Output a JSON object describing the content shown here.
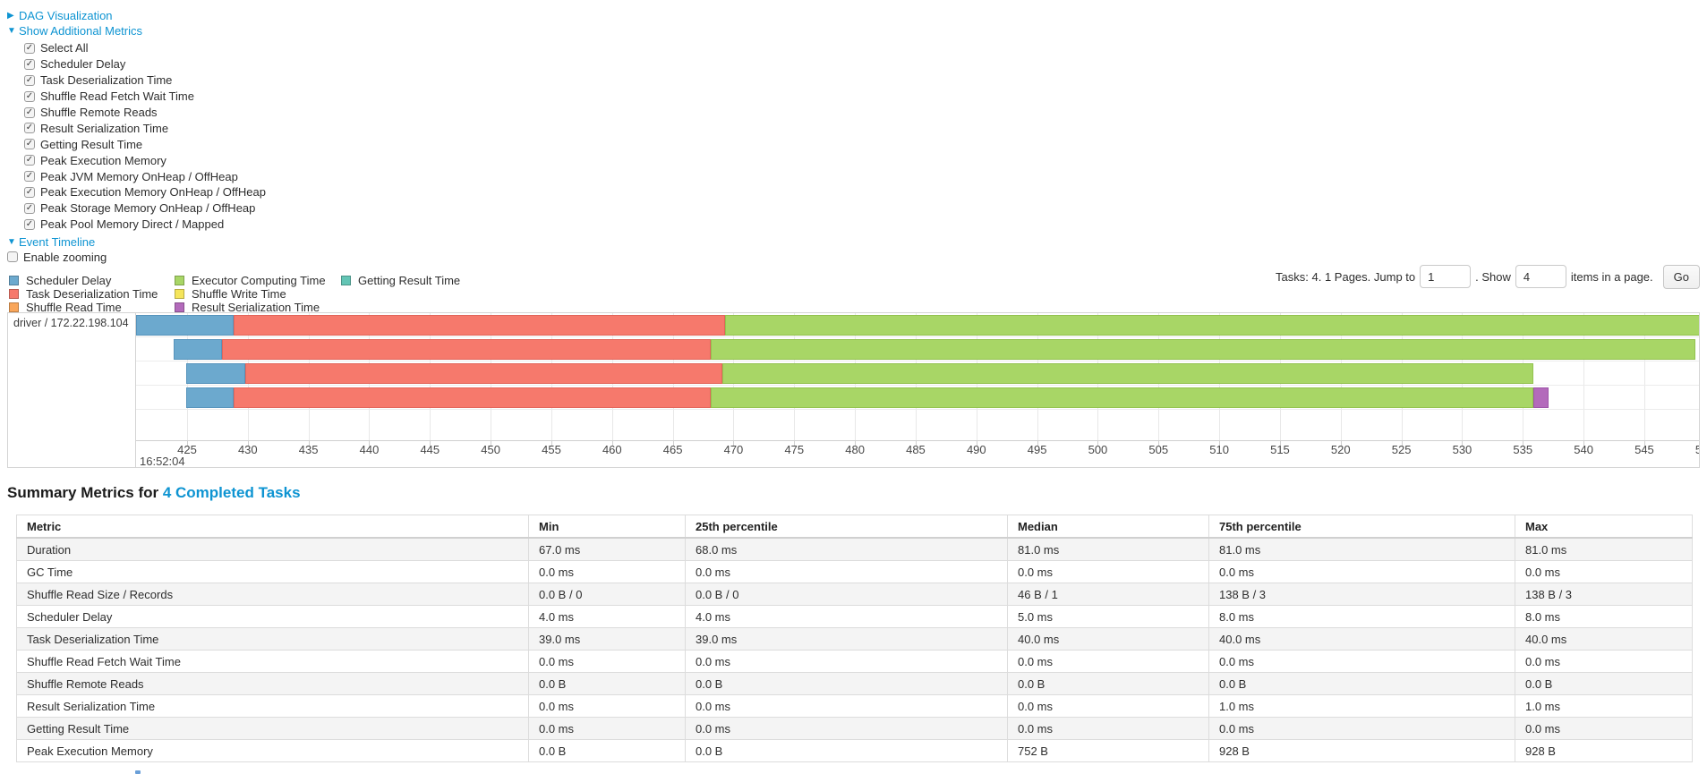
{
  "controls": {
    "dag": {
      "arrow": "▶",
      "label": "DAG Visualization"
    },
    "metrics": {
      "arrow": "▼",
      "label": "Show Additional Metrics"
    },
    "checkboxes": [
      {
        "label": "Select All",
        "checked": true
      },
      {
        "label": "Scheduler Delay",
        "checked": true
      },
      {
        "label": "Task Deserialization Time",
        "checked": true
      },
      {
        "label": "Shuffle Read Fetch Wait Time",
        "checked": true
      },
      {
        "label": "Shuffle Remote Reads",
        "checked": true
      },
      {
        "label": "Result Serialization Time",
        "checked": true
      },
      {
        "label": "Getting Result Time",
        "checked": true
      },
      {
        "label": "Peak Execution Memory",
        "checked": true
      },
      {
        "label": "Peak JVM Memory OnHeap / OffHeap",
        "checked": true
      },
      {
        "label": "Peak Execution Memory OnHeap / OffHeap",
        "checked": true
      },
      {
        "label": "Peak Storage Memory OnHeap / OffHeap",
        "checked": true
      },
      {
        "label": "Peak Pool Memory Direct / Mapped",
        "checked": true
      }
    ],
    "event_timeline": {
      "arrow": "▼",
      "label": "Event Timeline"
    },
    "enable_zooming": {
      "label": "Enable zooming",
      "checked": false
    }
  },
  "legend": {
    "columns": [
      [
        {
          "label": "Scheduler Delay",
          "color": "scheduler_delay"
        },
        {
          "label": "Task Deserialization Time",
          "color": "task_deserialization"
        },
        {
          "label": "Shuffle Read Time",
          "color": "shuffle_read"
        }
      ],
      [
        {
          "label": "Executor Computing Time",
          "color": "executor_computing"
        },
        {
          "label": "Shuffle Write Time",
          "color": "shuffle_write"
        },
        {
          "label": "Result Serialization Time",
          "color": "result_serialization"
        }
      ],
      [
        {
          "label": "Getting Result Time",
          "color": "getting_result"
        }
      ]
    ]
  },
  "colors": {
    "scheduler_delay": "#6CA9CE",
    "task_deserialization": "#F6796C",
    "shuffle_read": "#F9A65A",
    "executor_computing": "#A8D666",
    "shuffle_write": "#F5E55B",
    "result_serialization": "#B36ABB",
    "getting_result": "#63C5B5",
    "link_blue": "#0e94d2"
  },
  "segment_border_colors": {
    "scheduler_delay": "#5794BC",
    "task_deserialization": "#E2655A",
    "executor_computing": "#93C24F",
    "result_serialization": "#9D54A8"
  },
  "pagination": {
    "summary": "Tasks: 4. 1 Pages. Jump to",
    "jump_value": "1",
    "show_label": ". Show",
    "show_value": "4",
    "items_label": "items in a page.",
    "go_label": "Go"
  },
  "chart_data": {
    "type": "timeline",
    "row_label": "driver / 172.22.198.104",
    "axis": {
      "min": 420.8,
      "max": 549.5,
      "tick_start": 425,
      "tick_step": 5,
      "tick_end": 550,
      "major_label": "16:52:04",
      "unit": "ms after 16:52:04"
    },
    "tasks": [
      {
        "segments": [
          {
            "name": "scheduler-delay",
            "color": "scheduler_delay",
            "start": 420.8,
            "end": 428.8
          },
          {
            "name": "task-deserialization-time",
            "color": "task_deserialization",
            "start": 428.8,
            "end": 469.3
          },
          {
            "name": "executor-computing-time",
            "color": "executor_computing",
            "start": 469.3,
            "end": 550.5
          }
        ]
      },
      {
        "segments": [
          {
            "name": "scheduler-delay",
            "color": "scheduler_delay",
            "start": 423.9,
            "end": 427.9
          },
          {
            "name": "task-deserialization-time",
            "color": "task_deserialization",
            "start": 427.9,
            "end": 468.1
          },
          {
            "name": "executor-computing-time",
            "color": "executor_computing",
            "start": 468.1,
            "end": 549.2
          }
        ]
      },
      {
        "segments": [
          {
            "name": "scheduler-delay",
            "color": "scheduler_delay",
            "start": 424.9,
            "end": 429.8
          },
          {
            "name": "task-deserialization-time",
            "color": "task_deserialization",
            "start": 429.8,
            "end": 469.1
          },
          {
            "name": "executor-computing-time",
            "color": "executor_computing",
            "start": 469.1,
            "end": 535.9
          }
        ]
      },
      {
        "segments": [
          {
            "name": "scheduler-delay",
            "color": "scheduler_delay",
            "start": 424.9,
            "end": 428.8
          },
          {
            "name": "task-deserialization-time",
            "color": "task_deserialization",
            "start": 428.8,
            "end": 468.1
          },
          {
            "name": "executor-computing-time",
            "color": "executor_computing",
            "start": 468.1,
            "end": 535.9
          },
          {
            "name": "result-serialization-time",
            "color": "result_serialization",
            "start": 535.9,
            "end": 537.1
          }
        ]
      }
    ]
  },
  "summary": {
    "title_prefix": "Summary Metrics for ",
    "title_link": "4 Completed Tasks",
    "table": {
      "headers": [
        "Metric",
        "Min",
        "25th percentile",
        "Median",
        "75th percentile",
        "Max"
      ],
      "rows": [
        [
          "Duration",
          "67.0 ms",
          "68.0 ms",
          "81.0 ms",
          "81.0 ms",
          "81.0 ms"
        ],
        [
          "GC Time",
          "0.0 ms",
          "0.0 ms",
          "0.0 ms",
          "0.0 ms",
          "0.0 ms"
        ],
        [
          "Shuffle Read Size / Records",
          "0.0 B / 0",
          "0.0 B / 0",
          "46 B / 1",
          "138 B / 3",
          "138 B / 3"
        ],
        [
          "Scheduler Delay",
          "4.0 ms",
          "4.0 ms",
          "5.0 ms",
          "8.0 ms",
          "8.0 ms"
        ],
        [
          "Task Deserialization Time",
          "39.0 ms",
          "39.0 ms",
          "40.0 ms",
          "40.0 ms",
          "40.0 ms"
        ],
        [
          "Shuffle Read Fetch Wait Time",
          "0.0 ms",
          "0.0 ms",
          "0.0 ms",
          "0.0 ms",
          "0.0 ms"
        ],
        [
          "Shuffle Remote Reads",
          "0.0 B",
          "0.0 B",
          "0.0 B",
          "0.0 B",
          "0.0 B"
        ],
        [
          "Result Serialization Time",
          "0.0 ms",
          "0.0 ms",
          "0.0 ms",
          "1.0 ms",
          "1.0 ms"
        ],
        [
          "Getting Result Time",
          "0.0 ms",
          "0.0 ms",
          "0.0 ms",
          "0.0 ms",
          "0.0 ms"
        ],
        [
          "Peak Execution Memory",
          "0.0 B",
          "0.0 B",
          "752 B",
          "928 B",
          "928 B"
        ]
      ]
    }
  }
}
